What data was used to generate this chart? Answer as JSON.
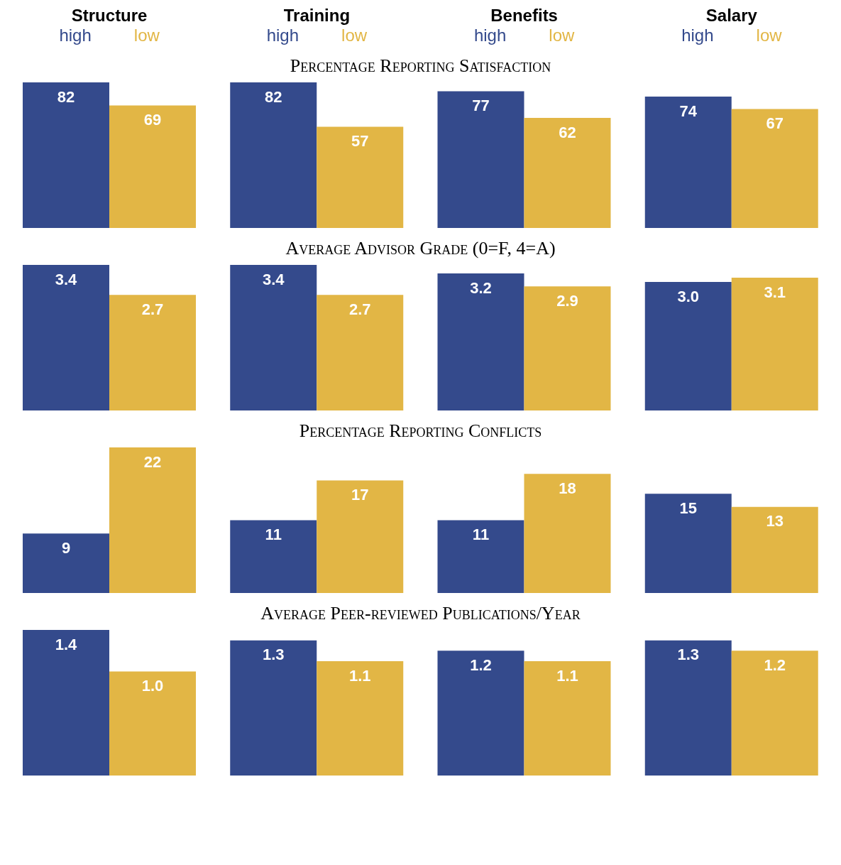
{
  "chart_data": [
    {
      "type": "bar",
      "title": "Percentage Reporting Satisfaction",
      "categories": [
        "Structure",
        "Training",
        "Benefits",
        "Salary"
      ],
      "series": [
        {
          "name": "high",
          "color": "#344a8c",
          "values": [
            82,
            82,
            77,
            74
          ]
        },
        {
          "name": "low",
          "color": "#e2b645",
          "values": [
            69,
            57,
            62,
            67
          ]
        }
      ],
      "data_labels": true
    },
    {
      "type": "bar",
      "title": "Average Advisor Grade (0=F, 4=A)",
      "categories": [
        null,
        null,
        null,
        null
      ],
      "series": [
        {
          "color": "#344a8c",
          "values": [
            3.4,
            3.4,
            3.2,
            3.0
          ],
          "value_labels": [
            "3.4",
            "3.4",
            "3.2",
            "3.0"
          ]
        },
        {
          "color": "#e2b645",
          "values": [
            2.7,
            2.7,
            2.9,
            3.1
          ],
          "value_labels": [
            "2.7",
            "2.7",
            "2.9",
            "3.1"
          ]
        }
      ]
    },
    {
      "type": "bar",
      "title": "Percentage Reporting Conflicts",
      "categories": [
        null,
        null,
        null,
        null
      ],
      "series": [
        {
          "color": "#344a8c",
          "values": [
            9,
            11,
            11,
            15
          ]
        },
        {
          "color": "#e2b645",
          "values": [
            22,
            17,
            18,
            13
          ]
        }
      ],
      "data_labels": true
    },
    {
      "type": "bar",
      "title": "Average Peer-reviewed Publications/Year",
      "categories": [
        null,
        null,
        null,
        null
      ],
      "series": [
        {
          "color": "#344a8c",
          "values": [
            1.4,
            1.3,
            1.2,
            1.3
          ],
          "value_labels": [
            "1.4",
            "1.3",
            "1.2",
            "1.3"
          ]
        },
        {
          "color": "#e2b645",
          "values": [
            1.0,
            1.1,
            1.1,
            1.2
          ],
          "value_labels": [
            "1.0",
            "1.1",
            "1.1",
            "1.2"
          ]
        }
      ]
    }
  ]
}
